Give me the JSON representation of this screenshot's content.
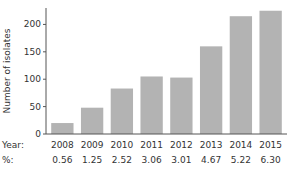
{
  "chart_data": {
    "type": "bar",
    "categories": [
      "2008",
      "2009",
      "2010",
      "2011",
      "2012",
      "2013",
      "2014",
      "2015"
    ],
    "values": [
      20,
      48,
      83,
      105,
      103,
      160,
      215,
      225
    ],
    "percentages": [
      "0.56",
      "1.25",
      "2.52",
      "3.06",
      "3.01",
      "4.67",
      "5.22",
      "6.30"
    ],
    "color": "#b3b3b3",
    "ylabel": "Number of isolates",
    "xlabel": "Year:",
    "percentages_label": "%:",
    "ylim": [
      0,
      230
    ],
    "yticks": [
      0,
      50,
      100,
      150,
      200
    ],
    "grid": false
  }
}
